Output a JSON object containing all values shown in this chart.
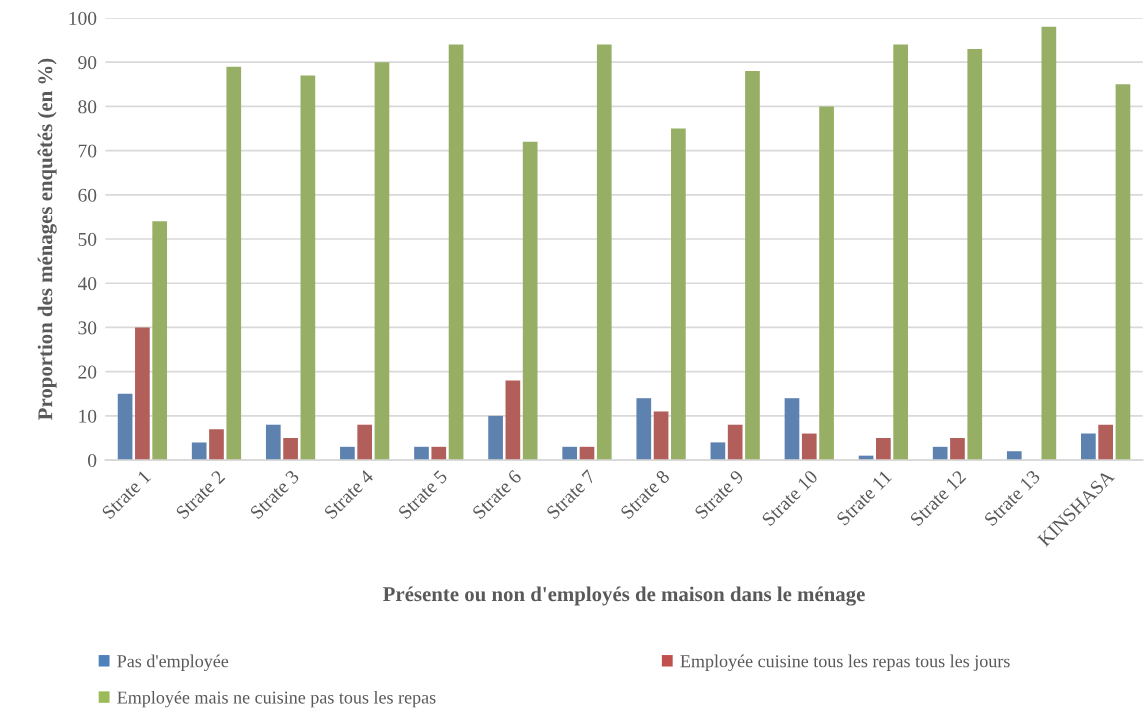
{
  "chart_data": {
    "type": "bar",
    "xlabel": "Présente ou non d'employés de maison dans le ménage",
    "ylabel": "Proportion des ménages enquêtés (en %)",
    "categories": [
      "Strate 1",
      "Strate 2",
      "Strate 3",
      "Strate 4",
      "Strate 5",
      "Strate 6",
      "Strate 7",
      "Strate 8",
      "Strate 9",
      "Strate 10",
      "Strate 11",
      "Strate 12",
      "Strate 13",
      "KINSHASA"
    ],
    "series": [
      {
        "name": "Pas d'employée",
        "color": "#4f81bd",
        "values": [
          15,
          4,
          8,
          3,
          3,
          10,
          3,
          14,
          4,
          14,
          1,
          3,
          2,
          6
        ]
      },
      {
        "name": "Employée cuisine tous les repas tous les jours",
        "color": "#c0504d",
        "values": [
          30,
          7,
          5,
          8,
          3,
          18,
          3,
          11,
          8,
          6,
          5,
          5,
          0,
          8
        ]
      },
      {
        "name": "Employée mais ne cuisine pas tous les repas",
        "color": "#9bbb59",
        "values": [
          54,
          89,
          87,
          90,
          94,
          72,
          94,
          75,
          88,
          80,
          94,
          93,
          98,
          85
        ]
      }
    ],
    "ylim": [
      0,
      100
    ],
    "yticks": [
      0,
      10,
      20,
      30,
      40,
      50,
      60,
      70,
      80,
      90,
      100
    ],
    "grid": "y",
    "legend": "bottom"
  }
}
